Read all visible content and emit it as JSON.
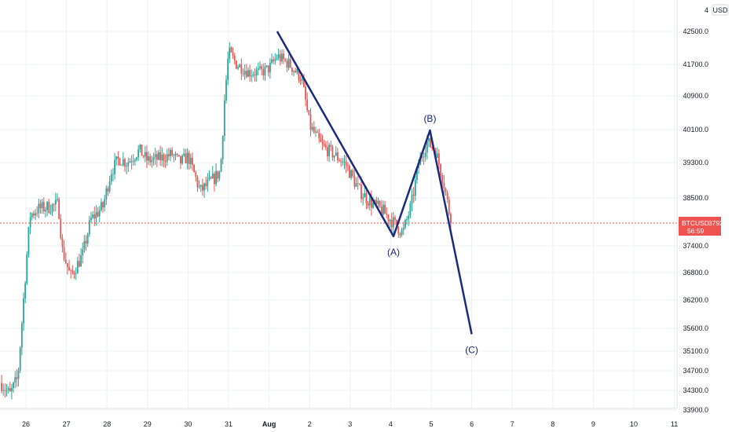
{
  "chart_data": {
    "type": "candlestick",
    "symbol": "BTCUSD",
    "currency": "USD",
    "last_price": "37923.0",
    "countdown": "56:59",
    "colors": {
      "up": "#26a69a",
      "down": "#ef5350",
      "wave": "#1a2a80",
      "grid": "#eef0f3",
      "price_line": "#ef5350"
    },
    "grid": true,
    "y_range": [
      33700,
      43300
    ],
    "y_ticks": [
      42500,
      41700,
      40900,
      40100,
      39300,
      38500,
      37400,
      36800,
      36200,
      35600,
      35100,
      34700,
      34300,
      33900
    ],
    "y_tick_labels": [
      "42500.0",
      "41700.0",
      "40900.0",
      "40100.0",
      "39300.0",
      "38500.0",
      "37400.0",
      "36800.0",
      "36200.0",
      "35600.0",
      "35100.0",
      "34700.0",
      "34300.0",
      "33900.0"
    ],
    "y_top_label": "4",
    "x_range_days": [
      25.4,
      42.5
    ],
    "x_ticks": [
      {
        "day": 26,
        "label": "26"
      },
      {
        "day": 27,
        "label": "27"
      },
      {
        "day": 28,
        "label": "28"
      },
      {
        "day": 29,
        "label": "29"
      },
      {
        "day": 30,
        "label": "30"
      },
      {
        "day": 31,
        "label": "31"
      },
      {
        "day": 32,
        "label": "Aug",
        "bold": true
      },
      {
        "day": 33,
        "label": "2"
      },
      {
        "day": 34,
        "label": "3"
      },
      {
        "day": 35,
        "label": "4"
      },
      {
        "day": 36,
        "label": "5"
      },
      {
        "day": 37,
        "label": "6"
      },
      {
        "day": 38,
        "label": "7"
      },
      {
        "day": 39,
        "label": "8"
      },
      {
        "day": 40,
        "label": "9"
      },
      {
        "day": 41,
        "label": "10"
      },
      {
        "day": 42,
        "label": "11"
      }
    ],
    "price_anchors": [
      [
        25.4,
        34450
      ],
      [
        25.6,
        34200
      ],
      [
        25.8,
        34550
      ],
      [
        26.0,
        36900
      ],
      [
        26.1,
        38100
      ],
      [
        26.3,
        38250
      ],
      [
        26.6,
        38300
      ],
      [
        26.8,
        38350
      ],
      [
        26.9,
        37300
      ],
      [
        27.1,
        36700
      ],
      [
        27.4,
        37200
      ],
      [
        27.6,
        38000
      ],
      [
        27.9,
        38300
      ],
      [
        28.1,
        39100
      ],
      [
        28.3,
        39400
      ],
      [
        28.5,
        39300
      ],
      [
        28.8,
        39600
      ],
      [
        29.0,
        39350
      ],
      [
        29.3,
        39400
      ],
      [
        29.6,
        39500
      ],
      [
        29.8,
        39300
      ],
      [
        30.0,
        39450
      ],
      [
        30.3,
        38650
      ],
      [
        30.6,
        38900
      ],
      [
        30.8,
        39100
      ],
      [
        30.9,
        40800
      ],
      [
        31.0,
        42000
      ],
      [
        31.2,
        41700
      ],
      [
        31.5,
        41500
      ],
      [
        31.8,
        41500
      ],
      [
        32.0,
        41600
      ],
      [
        32.2,
        41900
      ],
      [
        32.5,
        41700
      ],
      [
        32.8,
        41350
      ],
      [
        33.0,
        40200
      ],
      [
        33.3,
        39700
      ],
      [
        33.6,
        39500
      ],
      [
        33.9,
        39250
      ],
      [
        34.2,
        38700
      ],
      [
        34.5,
        38400
      ],
      [
        34.8,
        38200
      ],
      [
        35.1,
        37900
      ],
      [
        35.3,
        37700
      ],
      [
        35.5,
        38300
      ],
      [
        35.7,
        39300
      ],
      [
        35.9,
        39800
      ],
      [
        36.1,
        39600
      ],
      [
        36.3,
        38900
      ],
      [
        36.5,
        37900
      ]
    ],
    "wave_points": [
      [
        32.2,
        42500
      ],
      [
        35.07,
        37620
      ],
      [
        35.97,
        40080
      ],
      [
        37.0,
        35470
      ]
    ],
    "wave_labels": [
      {
        "text": "(A)",
        "day": 35.07,
        "price": 37620,
        "pos": "below"
      },
      {
        "text": "(B)",
        "day": 35.97,
        "price": 40080,
        "pos": "above"
      },
      {
        "text": "(C)",
        "day": 37.0,
        "price": 35470,
        "pos": "below"
      }
    ]
  }
}
